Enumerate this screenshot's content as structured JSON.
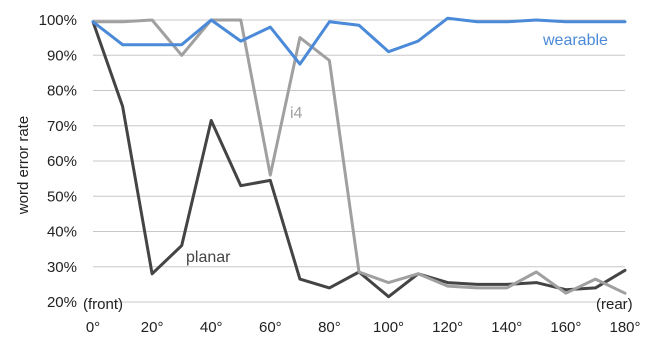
{
  "chart_data": {
    "type": "line",
    "ylabel": "word error rate",
    "xlabel": "",
    "ylim": [
      20,
      100
    ],
    "xlim": [
      0,
      180
    ],
    "y_ticks": [
      "20%",
      "30%",
      "40%",
      "50%",
      "60%",
      "70%",
      "80%",
      "90%",
      "100%"
    ],
    "y_tick_values": [
      20,
      30,
      40,
      50,
      60,
      70,
      80,
      90,
      100
    ],
    "x_ticks": [
      "0°",
      "20°",
      "40°",
      "60°",
      "80°",
      "100°",
      "120°",
      "140°",
      "160°",
      "180°"
    ],
    "x_tick_values": [
      0,
      20,
      40,
      60,
      80,
      100,
      120,
      140,
      160,
      180
    ],
    "x": [
      0,
      10,
      20,
      30,
      40,
      50,
      60,
      70,
      80,
      90,
      100,
      110,
      120,
      130,
      140,
      150,
      160,
      170,
      180
    ],
    "grid": "horizontal",
    "annotations": {
      "front": "(front)",
      "rear": "(rear)"
    },
    "series": [
      {
        "name": "wearable",
        "color": "#4a8ad8",
        "values": [
          99.5,
          93,
          93,
          93,
          100,
          94,
          98,
          87.5,
          99.5,
          98.5,
          91,
          94,
          100.5,
          99.5,
          99.5,
          100,
          99.5,
          99.5,
          99.5
        ]
      },
      {
        "name": "i4",
        "color": "#a0a0a0",
        "values": [
          99.5,
          99.5,
          100,
          90,
          100,
          100,
          56,
          95,
          88.5,
          28.5,
          25.5,
          28,
          24.5,
          24,
          24,
          28.5,
          22.5,
          26.5,
          22.5
        ]
      },
      {
        "name": "planar",
        "color": "#444444",
        "values": [
          99.5,
          75.5,
          28,
          36,
          71.5,
          53,
          54.5,
          26.5,
          24,
          28.5,
          21.5,
          28,
          25.5,
          25,
          25,
          25.5,
          23.5,
          24,
          29
        ]
      }
    ]
  }
}
